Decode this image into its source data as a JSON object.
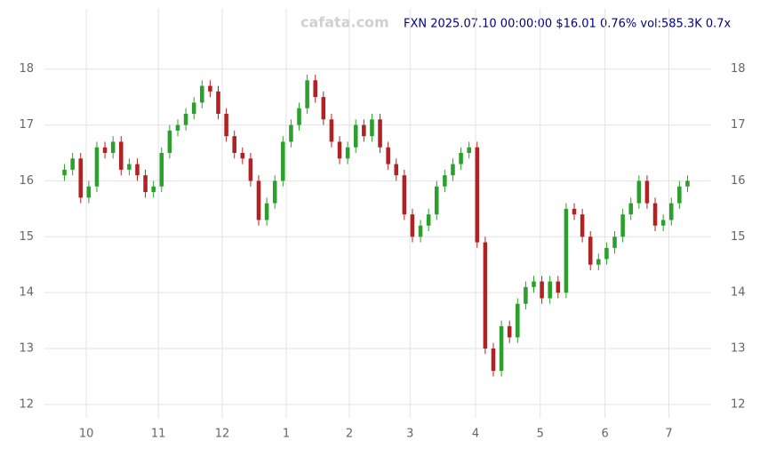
{
  "chart_data": {
    "type": "candlestick",
    "title": "FXN 2025.07.10 00:00:00 $16.01 0.76% vol:585.3K 0.7x",
    "watermark": "cafata.com",
    "up_color": "#2ca02c",
    "down_color": "#b22222",
    "grid": true,
    "xlim": [
      -0.5,
      77.5
    ],
    "xticks": [
      {
        "value": 2.7,
        "label": "10"
      },
      {
        "value": 11.6,
        "label": "11"
      },
      {
        "value": 19.5,
        "label": "12"
      },
      {
        "value": 27.4,
        "label": "1"
      },
      {
        "value": 35.2,
        "label": "2"
      },
      {
        "value": 42.7,
        "label": "3"
      },
      {
        "value": 50.8,
        "label": "4"
      },
      {
        "value": 58.8,
        "label": "5"
      },
      {
        "value": 66.8,
        "label": "6"
      },
      {
        "value": 74.7,
        "label": "7"
      }
    ],
    "ylim": [
      11.6,
      18.6
    ],
    "yticks": [
      12,
      13,
      14,
      15,
      16,
      17,
      18
    ],
    "open": [
      16.1,
      16.2,
      16.4,
      15.7,
      15.9,
      16.6,
      16.5,
      16.7,
      16.2,
      16.3,
      16.1,
      15.8,
      15.9,
      16.5,
      16.9,
      17.0,
      17.2,
      17.4,
      17.7,
      17.6,
      17.2,
      16.8,
      16.5,
      16.4,
      16.0,
      15.3,
      15.6,
      16.0,
      16.7,
      17.0,
      17.3,
      17.8,
      17.5,
      17.1,
      16.7,
      16.4,
      16.6,
      17.0,
      16.8,
      17.1,
      16.6,
      16.3,
      16.1,
      15.4,
      15.0,
      15.2,
      15.4,
      15.9,
      16.1,
      16.3,
      16.5,
      16.6,
      14.9,
      13.0,
      12.6,
      13.4,
      13.2,
      13.8,
      14.1,
      14.2,
      13.9,
      14.2,
      14.0,
      15.5,
      15.4,
      15.0,
      14.5,
      14.6,
      14.8,
      15.0,
      15.4,
      15.6,
      16.0,
      15.6,
      15.2,
      15.3,
      15.6,
      15.9
    ],
    "high": [
      16.3,
      16.5,
      16.5,
      16.0,
      16.7,
      16.7,
      16.8,
      16.8,
      16.4,
      16.4,
      16.2,
      16.0,
      16.6,
      17.0,
      17.1,
      17.3,
      17.5,
      17.8,
      17.8,
      17.7,
      17.3,
      16.9,
      16.6,
      16.5,
      16.1,
      15.7,
      16.1,
      16.8,
      17.1,
      17.4,
      17.9,
      17.9,
      17.6,
      17.2,
      16.8,
      16.7,
      17.1,
      17.1,
      17.2,
      17.2,
      16.7,
      16.4,
      16.2,
      15.5,
      15.3,
      15.5,
      16.0,
      16.2,
      16.4,
      16.6,
      16.7,
      16.7,
      15.0,
      13.1,
      13.5,
      13.5,
      13.9,
      14.2,
      14.3,
      14.3,
      14.3,
      14.3,
      15.6,
      15.6,
      15.5,
      15.1,
      14.7,
      14.9,
      15.1,
      15.5,
      15.7,
      16.1,
      16.1,
      15.7,
      15.4,
      15.7,
      16.0,
      16.1
    ],
    "low": [
      16.0,
      16.1,
      15.6,
      15.6,
      15.8,
      16.4,
      16.4,
      16.1,
      16.1,
      16.0,
      15.7,
      15.7,
      15.8,
      16.4,
      16.8,
      16.9,
      17.1,
      17.3,
      17.5,
      17.1,
      16.7,
      16.4,
      16.3,
      15.9,
      15.2,
      15.2,
      15.5,
      15.9,
      16.6,
      16.9,
      17.2,
      17.4,
      17.0,
      16.6,
      16.3,
      16.3,
      16.5,
      16.7,
      16.7,
      16.5,
      16.2,
      16.0,
      15.3,
      14.9,
      14.9,
      15.1,
      15.3,
      15.8,
      16.0,
      16.2,
      16.4,
      14.8,
      12.9,
      12.5,
      12.5,
      13.1,
      13.1,
      13.7,
      14.0,
      13.8,
      13.8,
      13.9,
      13.9,
      15.3,
      14.9,
      14.4,
      14.4,
      14.5,
      14.7,
      14.9,
      15.3,
      15.5,
      15.5,
      15.1,
      15.1,
      15.2,
      15.5,
      15.8
    ],
    "close": [
      16.2,
      16.4,
      15.7,
      15.9,
      16.6,
      16.5,
      16.7,
      16.2,
      16.3,
      16.1,
      15.8,
      15.9,
      16.5,
      16.9,
      17.0,
      17.2,
      17.4,
      17.7,
      17.6,
      17.2,
      16.8,
      16.5,
      16.4,
      16.0,
      15.3,
      15.6,
      16.0,
      16.7,
      17.0,
      17.3,
      17.8,
      17.5,
      17.1,
      16.7,
      16.4,
      16.6,
      17.0,
      16.8,
      17.1,
      16.6,
      16.3,
      16.1,
      15.4,
      15.0,
      15.2,
      15.4,
      15.9,
      16.1,
      16.3,
      16.5,
      16.6,
      14.9,
      13.0,
      12.6,
      13.4,
      13.2,
      13.8,
      14.1,
      14.2,
      13.9,
      14.2,
      14.0,
      15.5,
      15.4,
      15.0,
      14.5,
      14.6,
      14.8,
      15.0,
      15.4,
      15.6,
      16.0,
      15.6,
      15.2,
      15.3,
      15.6,
      15.9,
      16.0
    ]
  }
}
